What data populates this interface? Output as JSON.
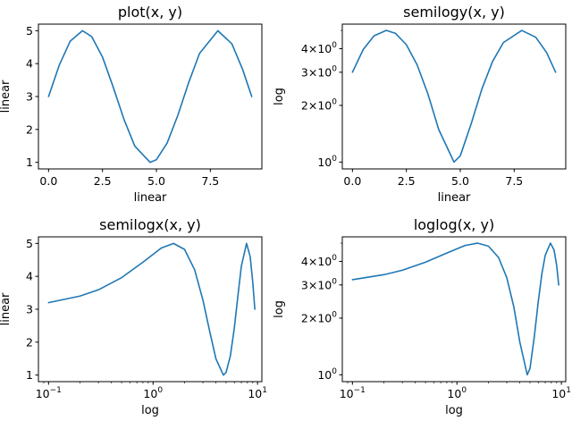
{
  "chart_data": [
    {
      "type": "line",
      "title": "plot(x, y)",
      "xlabel": "linear",
      "ylabel": "linear",
      "xscale": "linear",
      "yscale": "linear",
      "xlim": [
        -0.47,
        9.89
      ],
      "ylim": [
        0.8,
        5.2
      ],
      "xticks": [
        0,
        2.5,
        5,
        7.5
      ],
      "xticklabels": [
        "0.0",
        "2.5",
        "5.0",
        "7.5"
      ],
      "yticks": [
        1,
        2,
        3,
        4,
        5
      ],
      "yticklabels": [
        "1",
        "2",
        "3",
        "4",
        "5"
      ],
      "grid": false,
      "series": [
        {
          "x": [
            0.0,
            0.5,
            1.0,
            1.57,
            2.0,
            2.5,
            3.0,
            3.5,
            4.0,
            4.71,
            5.0,
            5.5,
            6.0,
            6.5,
            7.0,
            7.85,
            8.5,
            9.0,
            9.42
          ],
          "y": [
            3.0,
            3.96,
            4.68,
            5.0,
            4.82,
            4.2,
            3.28,
            2.3,
            1.49,
            1.0,
            1.08,
            1.59,
            2.44,
            3.43,
            4.31,
            5.0,
            4.6,
            3.82,
            3.0
          ]
        }
      ]
    },
    {
      "type": "line",
      "title": "semilogy(x, y)",
      "xlabel": "linear",
      "ylabel": "log",
      "xscale": "linear",
      "yscale": "log",
      "xlim": [
        -0.47,
        9.89
      ],
      "ylim": [
        0.92,
        5.4
      ],
      "xticks": [
        0,
        2.5,
        5,
        7.5
      ],
      "xticklabels": [
        "0.0",
        "2.5",
        "5.0",
        "7.5"
      ],
      "yticks": [
        1,
        2,
        3,
        4
      ],
      "yticklabels": [
        [
          "10",
          "0"
        ],
        [
          "2×10",
          "0"
        ],
        [
          "3×10",
          "0"
        ],
        [
          "4×10",
          "0"
        ]
      ],
      "grid": false,
      "series": [
        {
          "x": [
            0.0,
            0.5,
            1.0,
            1.57,
            2.0,
            2.5,
            3.0,
            3.5,
            4.0,
            4.71,
            5.0,
            5.5,
            6.0,
            6.5,
            7.0,
            7.85,
            8.5,
            9.0,
            9.42
          ],
          "y": [
            3.0,
            3.96,
            4.68,
            5.0,
            4.82,
            4.2,
            3.28,
            2.3,
            1.49,
            1.0,
            1.08,
            1.59,
            2.44,
            3.43,
            4.31,
            5.0,
            4.6,
            3.82,
            3.0
          ]
        }
      ]
    },
    {
      "type": "line",
      "title": "semilogx(x, y)",
      "xlabel": "log",
      "ylabel": "linear",
      "xscale": "log",
      "yscale": "linear",
      "xlim": [
        0.08,
        11.0
      ],
      "ylim": [
        0.8,
        5.2
      ],
      "xticks": [
        0.1,
        1,
        10
      ],
      "xticklabels": [
        [
          "10",
          "−1"
        ],
        [
          "10",
          "0"
        ],
        [
          "10",
          "1"
        ]
      ],
      "yticks": [
        1,
        2,
        3,
        4,
        5
      ],
      "yticklabels": [
        "1",
        "2",
        "3",
        "4",
        "5"
      ],
      "grid": false,
      "series": [
        {
          "x": [
            0.1,
            0.2,
            0.3,
            0.5,
            0.8,
            1.2,
            1.57,
            2.0,
            2.5,
            3.0,
            3.5,
            4.0,
            4.71,
            5.0,
            5.5,
            6.0,
            6.5,
            7.0,
            7.85,
            8.5,
            9.0,
            9.42
          ],
          "y": [
            3.2,
            3.4,
            3.59,
            3.96,
            4.43,
            4.86,
            5.0,
            4.82,
            4.2,
            3.28,
            2.3,
            1.49,
            1.0,
            1.08,
            1.59,
            2.44,
            3.43,
            4.31,
            5.0,
            4.6,
            3.82,
            3.0
          ]
        }
      ]
    },
    {
      "type": "line",
      "title": "loglog(x, y)",
      "xlabel": "log",
      "ylabel": "log",
      "xscale": "log",
      "yscale": "log",
      "xlim": [
        0.08,
        11.0
      ],
      "ylim": [
        0.92,
        5.4
      ],
      "xticks": [
        0.1,
        1,
        10
      ],
      "xticklabels": [
        [
          "10",
          "−1"
        ],
        [
          "10",
          "0"
        ],
        [
          "10",
          "1"
        ]
      ],
      "yticks": [
        1,
        2,
        3,
        4
      ],
      "yticklabels": [
        [
          "10",
          "0"
        ],
        [
          "2×10",
          "0"
        ],
        [
          "3×10",
          "0"
        ],
        [
          "4×10",
          "0"
        ]
      ],
      "grid": false,
      "series": [
        {
          "x": [
            0.1,
            0.2,
            0.3,
            0.5,
            0.8,
            1.2,
            1.57,
            2.0,
            2.5,
            3.0,
            3.5,
            4.0,
            4.71,
            5.0,
            5.5,
            6.0,
            6.5,
            7.0,
            7.85,
            8.5,
            9.0,
            9.42
          ],
          "y": [
            3.2,
            3.4,
            3.59,
            3.96,
            4.43,
            4.86,
            5.0,
            4.82,
            4.2,
            3.28,
            2.3,
            1.49,
            1.0,
            1.08,
            1.59,
            2.44,
            3.43,
            4.31,
            5.0,
            4.6,
            3.82,
            3.0
          ]
        }
      ]
    }
  ],
  "colors": {
    "line": "#1f77b4",
    "axes": "#000000",
    "background": "#ffffff"
  }
}
